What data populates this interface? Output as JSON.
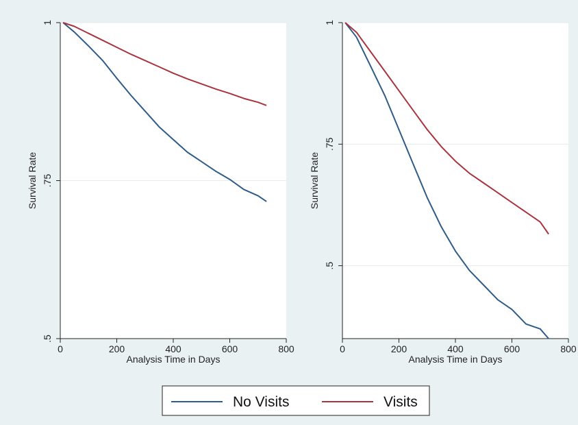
{
  "chart_data": [
    {
      "type": "line",
      "title": "",
      "xlabel": "Analysis Time in Days",
      "ylabel": "Survival Rate",
      "xlim": [
        0,
        800
      ],
      "ylim": [
        0.5,
        1.0
      ],
      "xticks": [
        0,
        200,
        400,
        600,
        800
      ],
      "yticks": [
        0.5,
        0.75,
        1.0
      ],
      "yticklabels": [
        ".5",
        ".75",
        "1"
      ],
      "grid": true,
      "series": [
        {
          "name": "No Visits",
          "color": "#2e5b88",
          "x": [
            10,
            50,
            100,
            150,
            200,
            250,
            300,
            350,
            400,
            450,
            500,
            550,
            600,
            650,
            700,
            730
          ],
          "y": [
            1.0,
            0.985,
            0.963,
            0.94,
            0.912,
            0.885,
            0.86,
            0.835,
            0.815,
            0.795,
            0.78,
            0.765,
            0.752,
            0.736,
            0.726,
            0.717
          ]
        },
        {
          "name": "Visits",
          "color": "#a8343f",
          "x": [
            10,
            50,
            100,
            150,
            200,
            250,
            300,
            350,
            400,
            450,
            500,
            550,
            600,
            650,
            700,
            730
          ],
          "y": [
            1.0,
            0.994,
            0.983,
            0.972,
            0.961,
            0.95,
            0.94,
            0.93,
            0.92,
            0.911,
            0.903,
            0.895,
            0.888,
            0.88,
            0.874,
            0.869
          ]
        }
      ]
    },
    {
      "type": "line",
      "title": "",
      "xlabel": "Analysis Time in Days",
      "ylabel": "Survival Rate",
      "xlim": [
        0,
        800
      ],
      "ylim": [
        0.35,
        1.0
      ],
      "xticks": [
        0,
        200,
        400,
        600,
        800
      ],
      "yticks": [
        0.5,
        0.75,
        1.0
      ],
      "yticklabels": [
        ".5",
        ".75",
        "1"
      ],
      "grid": true,
      "series": [
        {
          "name": "No Visits",
          "color": "#2e5b88",
          "x": [
            10,
            50,
            100,
            150,
            200,
            250,
            300,
            350,
            400,
            450,
            500,
            550,
            600,
            650,
            700,
            730
          ],
          "y": [
            1.0,
            0.97,
            0.91,
            0.85,
            0.78,
            0.71,
            0.64,
            0.58,
            0.53,
            0.49,
            0.46,
            0.43,
            0.41,
            0.38,
            0.37,
            0.35
          ]
        },
        {
          "name": "Visits",
          "color": "#a8343f",
          "x": [
            10,
            50,
            100,
            150,
            200,
            250,
            300,
            350,
            400,
            450,
            500,
            550,
            600,
            650,
            700,
            730
          ],
          "y": [
            1.0,
            0.98,
            0.94,
            0.9,
            0.86,
            0.82,
            0.78,
            0.745,
            0.715,
            0.69,
            0.67,
            0.65,
            0.63,
            0.61,
            0.59,
            0.565
          ]
        }
      ]
    }
  ],
  "legend": {
    "placement": "bottom-center",
    "items": [
      {
        "label": "No Visits",
        "color": "#2e5b88"
      },
      {
        "label": "Visits",
        "color": "#a8343f"
      }
    ]
  },
  "colors": {
    "outer_background": "#eaf1f3",
    "plot_background": "#ffffff",
    "grid": "#e4ecee"
  }
}
